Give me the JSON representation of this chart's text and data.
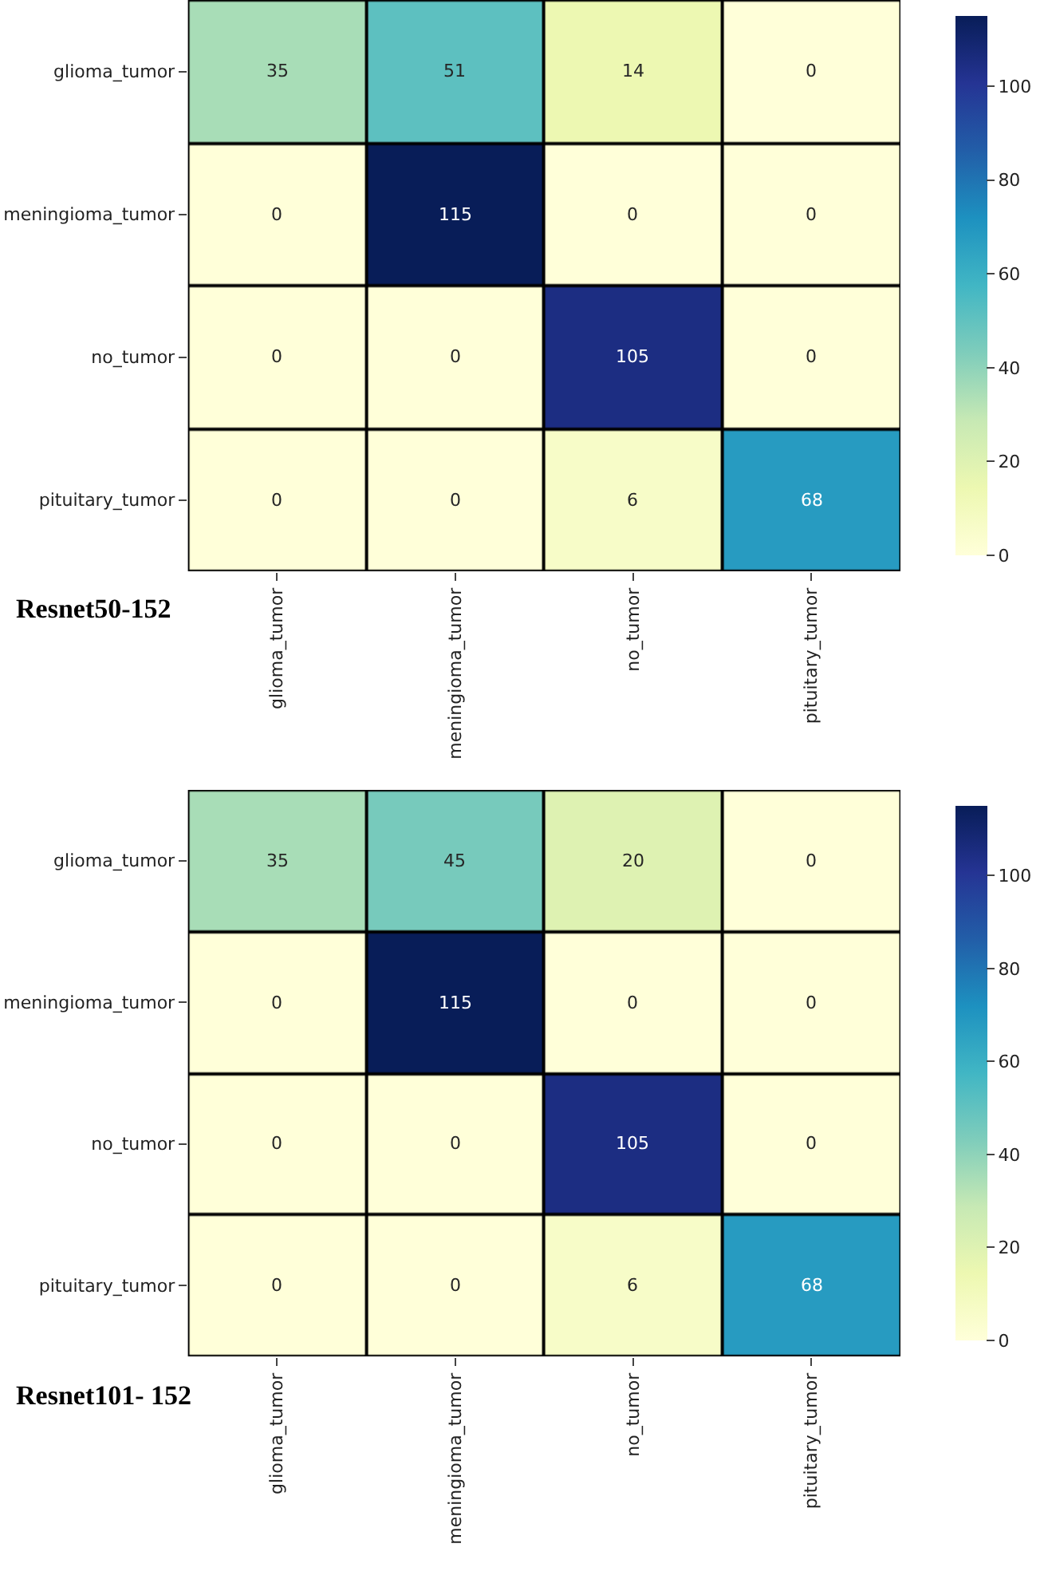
{
  "chart_data": [
    {
      "type": "heatmap",
      "title": "Resnet50-152",
      "categories": [
        "glioma_tumor",
        "meningioma_tumor",
        "no_tumor",
        "pituitary_tumor"
      ],
      "y_categories": [
        "glioma_tumor",
        "meningioma_tumor",
        "no_tumor",
        "pituitary_tumor"
      ],
      "cells": [
        [
          35,
          51,
          14,
          0
        ],
        [
          0,
          115,
          0,
          0
        ],
        [
          0,
          0,
          105,
          0
        ],
        [
          0,
          0,
          6,
          68
        ]
      ],
      "clim": [
        0,
        115
      ],
      "cticks": [
        0,
        20,
        40,
        60,
        80,
        100
      ],
      "data_labels": true
    },
    {
      "type": "heatmap",
      "title": "Resnet101- 152",
      "categories": [
        "glioma_tumor",
        "meningioma_tumor",
        "no_tumor",
        "pituitary_tumor"
      ],
      "y_categories": [
        "glioma_tumor",
        "meningioma_tumor",
        "no_tumor",
        "pituitary_tumor"
      ],
      "cells": [
        [
          35,
          45,
          20,
          0
        ],
        [
          0,
          115,
          0,
          0
        ],
        [
          0,
          0,
          105,
          0
        ],
        [
          0,
          0,
          6,
          68
        ]
      ],
      "clim": [
        0,
        115
      ],
      "cticks": [
        0,
        20,
        40,
        60,
        80,
        100
      ],
      "data_labels": true
    }
  ]
}
